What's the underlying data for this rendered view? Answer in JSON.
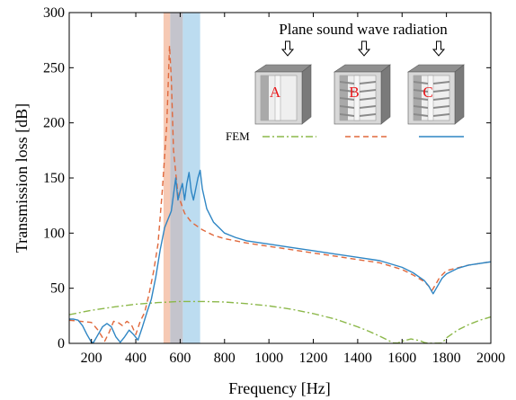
{
  "chart_data": {
    "type": "line",
    "title": "",
    "xlabel": "Frequency [Hz]",
    "ylabel": "Transmission loss [dB]",
    "xlim": [
      100,
      2000
    ],
    "ylim": [
      0,
      300
    ],
    "xticks": [
      200,
      400,
      600,
      800,
      1000,
      1200,
      1400,
      1600,
      1800,
      2000
    ],
    "yticks": [
      0,
      50,
      100,
      150,
      200,
      250,
      300
    ],
    "grid": false,
    "legend_label": "FEM",
    "legend_position": "top-right",
    "annotation": "Plane sound wave radiation",
    "bands": [
      {
        "x0": 525,
        "x1": 555,
        "color": "#f6c9b4"
      },
      {
        "x0": 555,
        "x1": 612,
        "color": "#c4c4cc"
      },
      {
        "x0": 612,
        "x1": 690,
        "color": "#bcdcf0"
      }
    ],
    "panels": [
      {
        "letter": "A",
        "color": "#e8191c"
      },
      {
        "letter": "B",
        "color": "#e8191c"
      },
      {
        "letter": "C",
        "color": "#e8191c"
      }
    ],
    "series": [
      {
        "key": "A",
        "color": "#8cb84a",
        "dash": "8 3 2 3",
        "x": [
          100,
          200,
          300,
          400,
          500,
          600,
          700,
          800,
          900,
          1000,
          1100,
          1200,
          1300,
          1400,
          1450,
          1500,
          1540,
          1560,
          1580,
          1600,
          1640,
          1680,
          1700,
          1720,
          1740,
          1760,
          1780,
          1800,
          1850,
          1900,
          1950,
          2000
        ],
        "y": [
          26,
          30,
          33,
          35.5,
          37,
          38,
          38,
          37.5,
          36,
          34,
          31,
          27,
          22,
          15,
          11,
          6.5,
          2.5,
          0.5,
          0.2,
          2,
          4,
          2.5,
          0.8,
          0.1,
          0.1,
          0.1,
          0.2,
          5,
          12,
          17,
          21,
          24
        ]
      },
      {
        "key": "B",
        "color": "#e0683c",
        "dash": "6 4",
        "x": [
          100,
          150,
          200,
          230,
          260,
          280,
          300,
          320,
          340,
          360,
          380,
          400,
          420,
          440,
          460,
          480,
          500,
          520,
          540,
          552,
          560,
          570,
          590,
          620,
          650,
          700,
          750,
          800,
          900,
          1000,
          1100,
          1200,
          1300,
          1400,
          1500,
          1600,
          1650,
          1700,
          1720,
          1735,
          1750,
          1770,
          1800,
          1900,
          2000
        ],
        "y": [
          21,
          20,
          19,
          12,
          2,
          10,
          20,
          19,
          16,
          20,
          17,
          8,
          20,
          28,
          45,
          65,
          90,
          140,
          200,
          270,
          240,
          175,
          135,
          118,
          110,
          103,
          98,
          95,
          91,
          88,
          85,
          82,
          79,
          76,
          73,
          67,
          62,
          56,
          52,
          48,
          53,
          60,
          66,
          71,
          74
        ]
      },
      {
        "key": "C",
        "color": "#2f86c4",
        "dash": "",
        "x": [
          100,
          120,
          140,
          160,
          180,
          200,
          210,
          230,
          250,
          270,
          290,
          310,
          330,
          350,
          370,
          390,
          410,
          430,
          450,
          470,
          490,
          510,
          530,
          540,
          550,
          560,
          570,
          580,
          590,
          600,
          610,
          620,
          630,
          640,
          650,
          660,
          670,
          680,
          690,
          700,
          720,
          750,
          800,
          850,
          900,
          1000,
          1100,
          1200,
          1300,
          1400,
          1500,
          1600,
          1650,
          1700,
          1720,
          1740,
          1760,
          1780,
          1800,
          1850,
          1900,
          2000
        ],
        "y": [
          22,
          22,
          21,
          16,
          8,
          1,
          1,
          8,
          15,
          18,
          15,
          6,
          1,
          6,
          12,
          8,
          3,
          15,
          28,
          40,
          60,
          85,
          105,
          110,
          115,
          120,
          135,
          150,
          130,
          138,
          145,
          130,
          145,
          155,
          138,
          130,
          140,
          150,
          157,
          140,
          122,
          110,
          100,
          96,
          93,
          90,
          87,
          84,
          81,
          78,
          75,
          69,
          64,
          57,
          52,
          45,
          52,
          59,
          63,
          68,
          71,
          74
        ]
      }
    ]
  }
}
